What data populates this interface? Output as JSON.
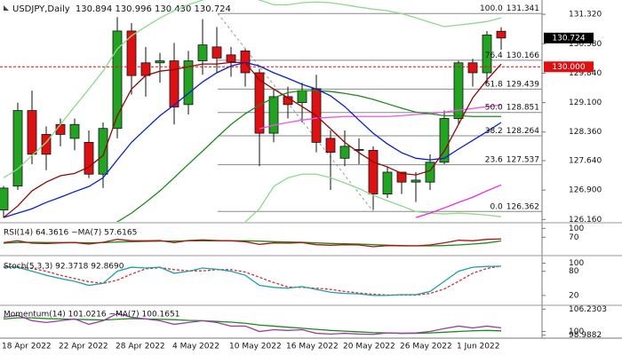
{
  "header": {
    "symbol": "USDJPY,Daily",
    "ohlc": [
      "130.894",
      "130.996",
      "130.430",
      "130.724"
    ]
  },
  "chart_data": [
    {
      "type": "candlestick",
      "categories": [
        "18 Apr 2022",
        null,
        null,
        null,
        "22 Apr 2022",
        null,
        null,
        null,
        "28 Apr 2022",
        null,
        null,
        null,
        "4 May 2022",
        null,
        null,
        null,
        "10 May 2022",
        null,
        null,
        null,
        "16 May 2022",
        null,
        null,
        null,
        "20 May 2022",
        null,
        null,
        null,
        "26 May 2022",
        null,
        null,
        null,
        "1 Jun 2022",
        null,
        null,
        null
      ],
      "open": [
        126.4,
        127.0,
        128.9,
        128.3,
        128.55,
        128.2,
        128.1,
        127.3,
        128.45,
        130.9,
        130.1,
        130.1,
        130.15,
        129.05,
        130.15,
        130.5,
        130.3,
        130.4,
        129.85,
        128.33,
        129.25,
        129.1,
        129.45,
        128.2,
        127.7,
        127.9,
        127.9,
        126.8,
        127.35,
        127.1,
        127.1,
        127.6,
        128.7,
        130.1,
        129.85,
        130.894
      ],
      "high": [
        127.0,
        129.1,
        129.4,
        128.5,
        128.7,
        128.7,
        128.4,
        128.6,
        131.25,
        131.1,
        130.5,
        130.35,
        130.6,
        130.4,
        131.2,
        131.0,
        130.5,
        130.45,
        129.95,
        129.45,
        129.5,
        129.6,
        129.8,
        128.4,
        128.4,
        128.2,
        128.0,
        127.5,
        127.35,
        127.35,
        127.8,
        128.9,
        130.15,
        130.2,
        130.9,
        130.996
      ],
      "low": [
        126.2,
        126.9,
        127.55,
        127.4,
        128.0,
        127.9,
        127.2,
        126.95,
        128.2,
        129.3,
        129.25,
        129.6,
        128.55,
        128.8,
        129.8,
        129.85,
        129.75,
        129.5,
        127.5,
        128.1,
        128.7,
        128.6,
        127.85,
        126.9,
        127.5,
        127.55,
        126.4,
        126.7,
        126.8,
        126.6,
        126.9,
        127.55,
        128.55,
        129.5,
        129.6,
        130.43
      ],
      "close": [
        126.95,
        128.9,
        127.8,
        127.8,
        128.3,
        128.55,
        127.3,
        128.45,
        130.9,
        129.78,
        129.78,
        130.15,
        128.99,
        130.15,
        130.55,
        130.22,
        130.13,
        129.85,
        128.33,
        129.25,
        129.05,
        129.4,
        128.1,
        127.85,
        128.0,
        127.92,
        126.8,
        127.35,
        127.1,
        127.15,
        127.6,
        128.7,
        130.1,
        129.85,
        130.8,
        130.724
      ],
      "up_color": "#22a322",
      "down_color": "#dd1111",
      "series": [
        {
          "color": "#8cd98c",
          "values": [
            127.21,
            127.43,
            127.77,
            128.1,
            128.55,
            129.0,
            129.44,
            129.89,
            130.45,
            130.78,
            131.01,
            131.23,
            131.41,
            131.56,
            131.68,
            131.79,
            131.85,
            131.79,
            131.68,
            131.56,
            131.56,
            131.61,
            131.63,
            131.61,
            131.56,
            131.5,
            131.45,
            131.41,
            131.34,
            131.23,
            131.12,
            131.01,
            131.05,
            131.09,
            131.14,
            131.23
          ]
        },
        {
          "color": "#8cd98c",
          "values": [
            null,
            null,
            null,
            null,
            null,
            null,
            null,
            null,
            null,
            null,
            null,
            null,
            null,
            null,
            null,
            null,
            null,
            126.1,
            126.43,
            126.99,
            127.21,
            127.3,
            127.3,
            127.21,
            127.08,
            126.94,
            126.77,
            126.63,
            126.5,
            126.36,
            126.32,
            126.3,
            126.32,
            126.3,
            126.27,
            126.23
          ]
        },
        {
          "color": "#ee55ee",
          "values": [
            null,
            null,
            null,
            null,
            null,
            null,
            null,
            null,
            null,
            null,
            null,
            null,
            null,
            null,
            null,
            null,
            null,
            null,
            128.44,
            128.53,
            128.6,
            128.66,
            128.71,
            128.73,
            128.75,
            128.75,
            128.75,
            128.75,
            128.77,
            128.8,
            128.82,
            128.86,
            128.91,
            128.95,
            129.0,
            129.04
          ]
        },
        {
          "color": "#ee22ee",
          "values": [
            null,
            null,
            null,
            null,
            null,
            null,
            null,
            null,
            null,
            null,
            null,
            null,
            null,
            null,
            null,
            null,
            null,
            null,
            null,
            null,
            null,
            null,
            null,
            null,
            null,
            null,
            null,
            null,
            null,
            126.21,
            126.32,
            126.45,
            126.59,
            126.72,
            126.88,
            127.03
          ]
        },
        {
          "color": "#1a8a1a",
          "values": [
            null,
            null,
            null,
            null,
            null,
            null,
            null,
            125.87,
            126.1,
            126.32,
            126.59,
            126.88,
            127.21,
            127.55,
            127.88,
            128.22,
            128.55,
            128.82,
            129.04,
            129.22,
            129.35,
            129.4,
            129.4,
            129.38,
            129.33,
            129.27,
            129.18,
            129.07,
            128.96,
            128.86,
            128.82,
            128.77,
            128.77,
            128.75,
            128.75,
            128.75
          ]
        },
        {
          "color": "#0a1fd0",
          "values": [
            126.21,
            126.32,
            126.43,
            126.59,
            126.72,
            126.86,
            126.99,
            127.21,
            127.66,
            128.1,
            128.44,
            128.77,
            129.04,
            129.33,
            129.62,
            129.85,
            130.02,
            130.11,
            130.02,
            129.85,
            129.71,
            129.56,
            129.44,
            129.27,
            129.0,
            128.66,
            128.33,
            128.06,
            127.84,
            127.7,
            127.66,
            127.7,
            127.93,
            128.15,
            128.37,
            128.6
          ]
        },
        {
          "color": "#8b0a0a",
          "values": [
            126.21,
            126.5,
            126.88,
            127.1,
            127.26,
            127.32,
            127.48,
            127.77,
            128.77,
            129.44,
            129.78,
            129.89,
            129.93,
            130.0,
            130.07,
            130.07,
            130.11,
            130.11,
            129.67,
            129.44,
            129.22,
            129.0,
            128.77,
            128.44,
            128.1,
            127.84,
            127.61,
            127.48,
            127.32,
            127.28,
            127.39,
            127.88,
            128.55,
            129.22,
            129.67,
            130.07
          ]
        }
      ],
      "ylim": [
        126.1,
        131.68
      ],
      "yticks": [
        {
          "value": 131.32,
          "label": "131.320"
        },
        {
          "value": 130.58,
          "label": "130.580"
        },
        {
          "value": 129.84,
          "label": "129.840"
        },
        {
          "value": 129.1,
          "label": "129.100"
        },
        {
          "value": 128.36,
          "label": "128.360"
        },
        {
          "value": 127.64,
          "label": "127.640"
        },
        {
          "value": 126.9,
          "label": "126.900"
        },
        {
          "value": 126.16,
          "label": "126.160"
        }
      ],
      "fib_levels": [
        {
          "level": "100.0",
          "price": 131.341
        },
        {
          "level": "76.4",
          "price": 130.166
        },
        {
          "level": "61.8",
          "price": 129.439
        },
        {
          "level": "50.0",
          "price": 128.851
        },
        {
          "level": "38.2",
          "price": 128.264
        },
        {
          "level": "23.6",
          "price": 127.537
        },
        {
          "level": "0.0",
          "price": 126.362
        }
      ],
      "alert_line": {
        "value": 130,
        "label": "130.000",
        "color": "#dd1111"
      },
      "last_price": {
        "value": 130.724,
        "label": "130.724"
      }
    },
    {
      "type": "line",
      "title": "RSI(14) 64.3616 ~MA(7) 57.6165",
      "series": [
        {
          "color": "#1a8a1a",
          "values": [
            50,
            52,
            53,
            52,
            52,
            52,
            51,
            52,
            54,
            55,
            56,
            57,
            57,
            58,
            58,
            58,
            58,
            58,
            57,
            55,
            54,
            53,
            51,
            49,
            48,
            47,
            45,
            43,
            42,
            41,
            41,
            42,
            44,
            47,
            51,
            57.62
          ]
        },
        {
          "color": "#b01010",
          "values": [
            52,
            58,
            50,
            49,
            51,
            52,
            47,
            53,
            63,
            58,
            58,
            59,
            52,
            59,
            61,
            59,
            58,
            55,
            46,
            51,
            50,
            52,
            45,
            43,
            45,
            44,
            38,
            42,
            41,
            41,
            44,
            51,
            60,
            58,
            63,
            64.36
          ]
        }
      ],
      "ylim": [
        20,
        110
      ],
      "yticks": [
        100,
        70
      ]
    },
    {
      "type": "line",
      "title": "Stoch(5,3,3) 92.3718 92.8690",
      "series": [
        {
          "color": "#d03030",
          "dash": true,
          "values": [
            90,
            91,
            87,
            80,
            70,
            62,
            54,
            50,
            58,
            73,
            86,
            89,
            84,
            81,
            81,
            84,
            84,
            78,
            65,
            52,
            41,
            40,
            38,
            35,
            30,
            26,
            23,
            21,
            21,
            21,
            25,
            36,
            55,
            75,
            87,
            92.87
          ]
        },
        {
          "color": "#1fa0a8",
          "values": [
            92,
            90,
            80,
            70,
            62,
            55,
            45,
            50,
            80,
            90,
            88,
            90,
            75,
            80,
            88,
            85,
            80,
            70,
            45,
            40,
            38,
            42,
            35,
            28,
            25,
            24,
            20,
            20,
            22,
            22,
            30,
            55,
            80,
            90,
            92,
            92.37
          ]
        }
      ],
      "ylim": [
        0,
        110
      ],
      "yticks": [
        100,
        80,
        20
      ]
    },
    {
      "type": "line",
      "title": "Momentum(14) 101.0216 ~MA(7) 100.1651",
      "series": [
        {
          "color": "#1a8a1a",
          "values": [
            103.5,
            103.8,
            103.8,
            103.6,
            103.5,
            103.4,
            103.3,
            103.2,
            103.4,
            103.6,
            103.5,
            103.4,
            103.3,
            103.1,
            103.0,
            102.8,
            102.6,
            102.3,
            101.8,
            101.5,
            101.2,
            100.9,
            100.6,
            100.3,
            100.1,
            99.9,
            99.7,
            99.6,
            99.5,
            99.5,
            99.6,
            99.8,
            100.0,
            100.2,
            100.3,
            100.17
          ]
        },
        {
          "color": "#9a3aa8",
          "values": [
            104.0,
            104.5,
            103.0,
            102.5,
            103.0,
            103.5,
            102.0,
            103.0,
            105.0,
            104.0,
            103.5,
            103.0,
            102.0,
            102.5,
            103.0,
            102.5,
            101.5,
            101.5,
            100.0,
            100.5,
            100.3,
            100.5,
            99.5,
            99.3,
            99.5,
            99.3,
            99.2,
            99.6,
            99.5,
            99.6,
            100.0,
            100.8,
            101.5,
            101.0,
            101.5,
            101.02
          ]
        }
      ],
      "ylim": [
        98.4,
        106.8
      ],
      "yticks": [
        106.2303,
        100,
        98.9882
      ]
    }
  ]
}
